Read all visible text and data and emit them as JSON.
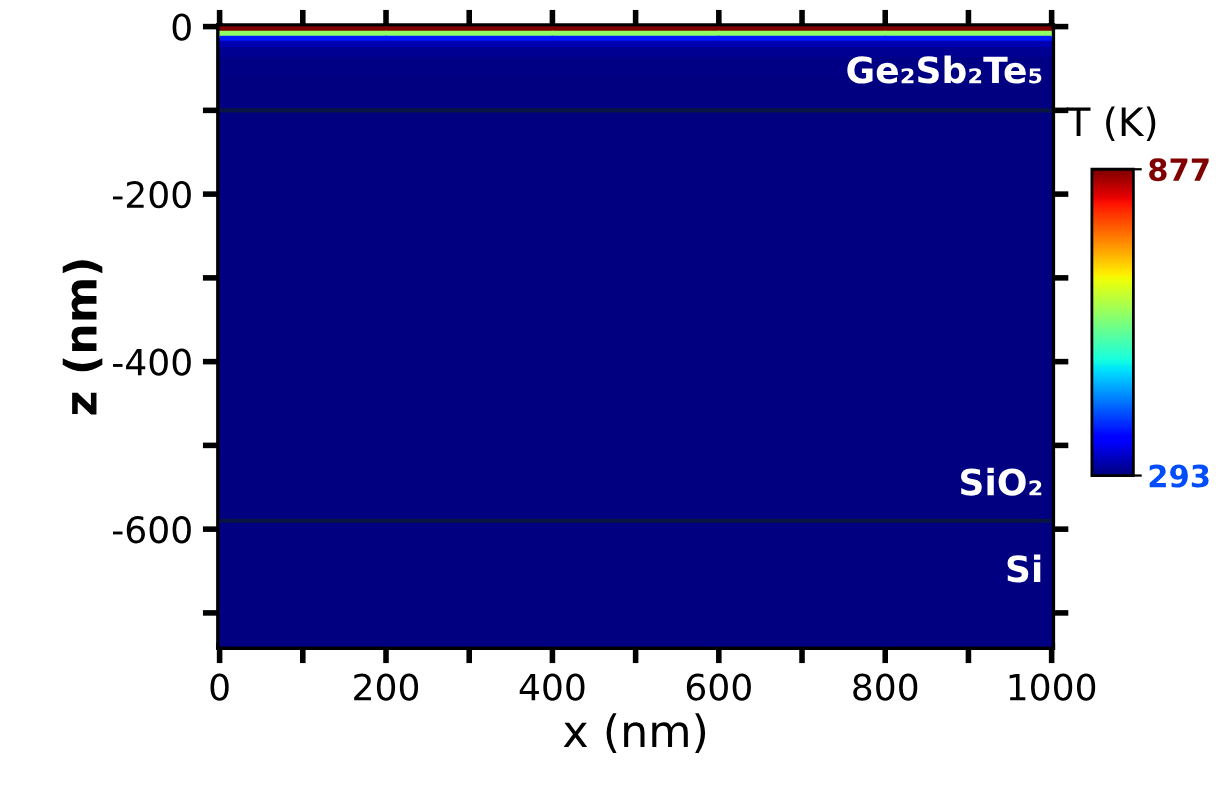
{
  "chart_data": {
    "type": "heatmap",
    "xlabel": "x (nm)",
    "ylabel": "z (nm)",
    "clabel": "T (K)",
    "x": [
      100,
      300,
      500,
      700,
      900
    ],
    "y": [
      -3,
      -9,
      -15,
      -21,
      -30,
      -45,
      -75,
      -150,
      -300,
      -450,
      -600,
      -700
    ],
    "cells": [
      [
        877,
        877,
        877,
        877,
        877
      ],
      [
        600,
        600,
        600,
        600,
        600
      ],
      [
        380,
        380,
        380,
        380,
        380
      ],
      [
        320,
        320,
        320,
        320,
        320
      ],
      [
        303,
        303,
        303,
        303,
        303
      ],
      [
        296,
        296,
        296,
        296,
        296
      ],
      [
        293,
        293,
        293,
        293,
        293
      ],
      [
        293,
        293,
        293,
        293,
        293
      ],
      [
        293,
        293,
        293,
        293,
        293
      ],
      [
        293,
        293,
        293,
        293,
        293
      ],
      [
        293,
        293,
        293,
        293,
        293
      ],
      [
        293,
        293,
        293,
        293,
        293
      ]
    ],
    "clim": [
      293,
      877
    ],
    "cticks": [
      293,
      877
    ],
    "xlim": [
      0,
      1000
    ],
    "ylim": [
      -740,
      0
    ],
    "xticks": [
      0,
      {
        "value": 100,
        "label": null
      },
      200,
      {
        "value": 300,
        "label": null
      },
      400,
      {
        "value": 500,
        "label": null
      },
      600,
      {
        "value": 700,
        "label": null
      },
      800,
      {
        "value": 900,
        "label": null
      },
      1000
    ],
    "yticks": [
      {
        "value": -700,
        "label": null
      },
      -600,
      {
        "value": -500,
        "label": null
      },
      -400,
      {
        "value": -300,
        "label": null
      },
      -200,
      {
        "value": -100,
        "label": null
      },
      0
    ],
    "ref_lines": [
      {
        "axis": "y",
        "value": -100,
        "color": "#0a1440"
      },
      {
        "axis": "y",
        "value": -590,
        "color": "#0a1440"
      }
    ],
    "annotations": [
      "Ge₂Sb₂Te₅",
      "SiO₂",
      "Si"
    ]
  }
}
